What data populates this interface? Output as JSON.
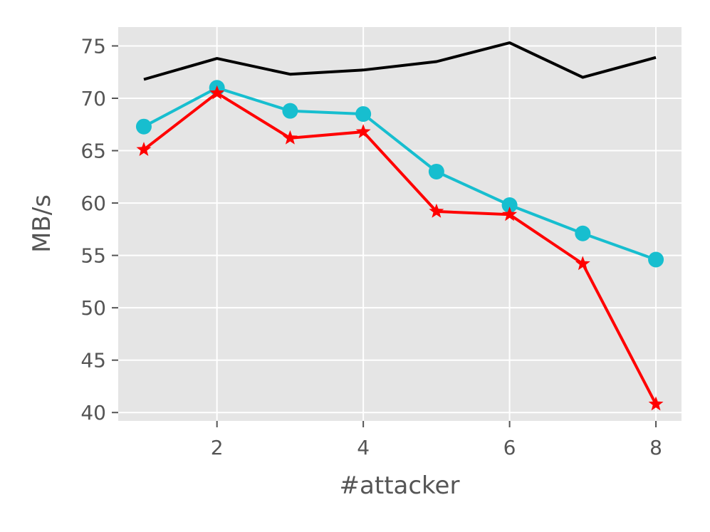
{
  "chart_data": {
    "type": "line",
    "title": "",
    "xlabel": "#attacker",
    "ylabel": "MB/s",
    "xlim": [
      0.65,
      8.35
    ],
    "ylim": [
      39.2,
      76.8
    ],
    "xticks": [
      2,
      4,
      6,
      8
    ],
    "yticks": [
      40,
      45,
      50,
      55,
      60,
      65,
      70,
      75
    ],
    "grid": true,
    "legend": "none",
    "x": [
      1,
      2,
      3,
      4,
      5,
      6,
      7,
      8
    ],
    "series": [
      {
        "color": "#000000",
        "marker": "none",
        "values": [
          71.8,
          73.8,
          72.3,
          72.7,
          73.5,
          75.3,
          72.0,
          73.9
        ]
      },
      {
        "color": "#17BECF",
        "marker": "circle",
        "values": [
          67.3,
          71.0,
          68.8,
          68.5,
          63.0,
          59.8,
          57.1,
          54.6
        ]
      },
      {
        "color": "#FF0000",
        "marker": "star",
        "values": [
          65.1,
          70.5,
          66.2,
          66.8,
          59.2,
          58.9,
          54.2,
          40.8
        ]
      }
    ]
  }
}
